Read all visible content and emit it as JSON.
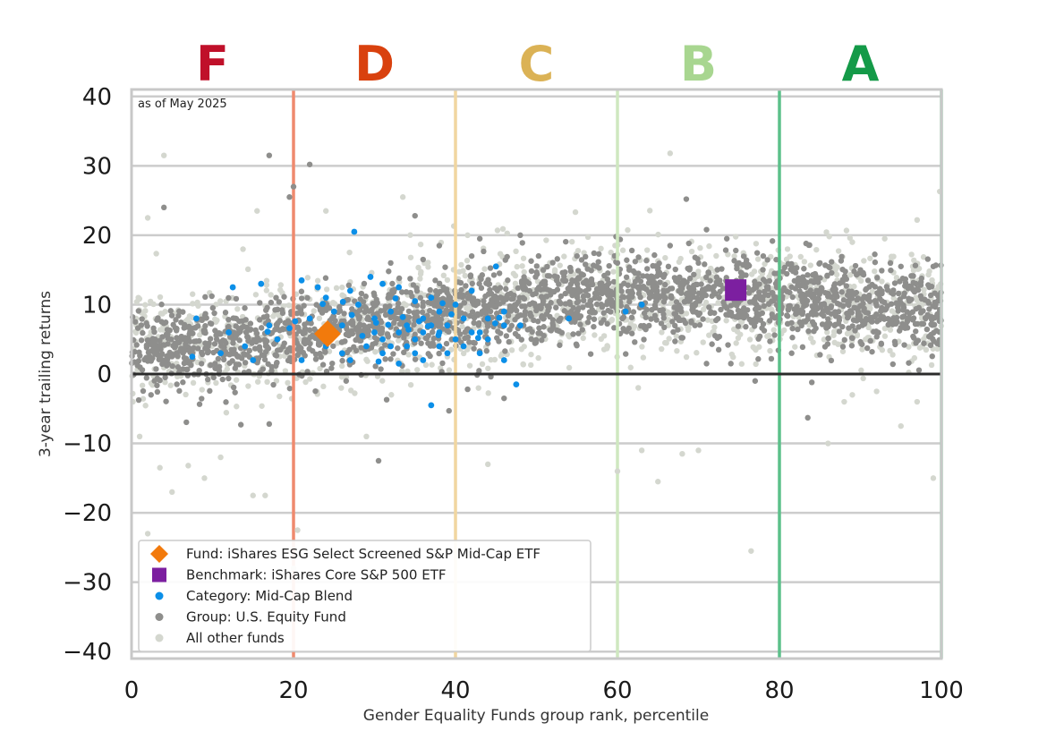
{
  "chart_data": {
    "type": "scatter",
    "note": "as of May 2025",
    "xlabel": "Gender Equality Funds group rank, percentile",
    "ylabel": "3-year trailing returns",
    "xlim": [
      0,
      100
    ],
    "ylim": [
      -41,
      41
    ],
    "xticks": [
      0,
      20,
      40,
      60,
      80,
      100
    ],
    "xtick_labels": [
      "0",
      "20",
      "40",
      "60",
      "80",
      "100"
    ],
    "yticks": [
      40,
      30,
      20,
      10,
      0,
      -10,
      -20,
      -30,
      -40
    ],
    "ytick_labels": [
      "40",
      "30",
      "20",
      "10",
      "0",
      "−10",
      "−20",
      "−30",
      "−40"
    ],
    "grid": "horizontal",
    "zero_line": 0,
    "grade_bands": [
      {
        "grade": "F",
        "x_center": 10,
        "color": "#c0102a"
      },
      {
        "grade": "D",
        "x_center": 30,
        "color": "#d9410e"
      },
      {
        "grade": "C",
        "x_center": 50,
        "color": "#dbb255"
      },
      {
        "grade": "B",
        "x_center": 70,
        "color": "#a8d690"
      },
      {
        "grade": "A",
        "x_center": 90,
        "color": "#149a48"
      }
    ],
    "boundaries": [
      {
        "x": 20,
        "color": "#ef8a6e"
      },
      {
        "x": 40,
        "color": "#f1d6a0"
      },
      {
        "x": 60,
        "color": "#cfe8c0"
      },
      {
        "x": 80,
        "color": "#5cc08a"
      },
      {
        "x": 100,
        "color": "#8fd0aa"
      }
    ],
    "legend_position": "bottom-left",
    "series": [
      {
        "name": "Fund: iShares ESG Select Screened S&P Mid-Cap ETF",
        "marker": "diamond",
        "color": "#f27a0c",
        "points": [
          [
            24.2,
            5.8
          ]
        ]
      },
      {
        "name": "Benchmark: iShares Core S&P 500 ETF",
        "marker": "square",
        "color": "#7c1fa0",
        "points": [
          [
            74.6,
            12.1
          ]
        ]
      },
      {
        "name": "Category: Mid-Cap Blend",
        "marker": "dot",
        "color": "#0b8fe8",
        "points": [
          [
            27.5,
            20.5
          ],
          [
            29.5,
            14
          ],
          [
            31,
            13
          ],
          [
            12.5,
            12.5
          ],
          [
            16,
            13
          ],
          [
            21,
            13.5
          ],
          [
            23,
            12.5
          ],
          [
            27,
            12
          ],
          [
            33,
            12.5
          ],
          [
            45,
            15.5
          ],
          [
            42,
            12
          ],
          [
            37,
            11
          ],
          [
            24,
            11
          ],
          [
            28,
            10
          ],
          [
            35,
            10.5
          ],
          [
            40,
            10
          ],
          [
            61,
            9
          ],
          [
            63,
            10
          ],
          [
            54,
            8
          ],
          [
            46,
            9
          ],
          [
            8,
            8
          ],
          [
            12,
            6
          ],
          [
            17,
            7
          ],
          [
            22,
            8
          ],
          [
            25,
            9
          ],
          [
            26,
            7
          ],
          [
            30,
            8
          ],
          [
            32,
            9
          ],
          [
            34,
            7
          ],
          [
            36,
            8
          ],
          [
            38,
            9
          ],
          [
            39,
            7
          ],
          [
            41,
            8
          ],
          [
            43,
            6
          ],
          [
            44,
            8
          ],
          [
            46,
            7
          ],
          [
            48,
            7
          ],
          [
            30,
            6
          ],
          [
            31,
            5
          ],
          [
            33,
            6
          ],
          [
            35,
            5
          ],
          [
            36,
            6
          ],
          [
            37,
            7
          ],
          [
            38,
            6
          ],
          [
            40,
            5
          ],
          [
            42,
            6
          ],
          [
            29,
            4
          ],
          [
            31,
            3
          ],
          [
            32,
            4
          ],
          [
            34,
            4
          ],
          [
            35,
            3
          ],
          [
            38,
            4
          ],
          [
            39,
            3
          ],
          [
            41,
            4
          ],
          [
            43,
            3
          ],
          [
            44,
            5
          ],
          [
            26,
            3
          ],
          [
            27,
            2
          ],
          [
            21,
            2
          ],
          [
            24,
            4
          ],
          [
            18,
            5
          ],
          [
            14,
            4
          ],
          [
            7.5,
            2.5
          ],
          [
            11,
            3
          ],
          [
            15,
            2
          ],
          [
            36,
            2
          ],
          [
            46,
            2
          ],
          [
            47.5,
            -1.5
          ],
          [
            37,
            -4.5
          ],
          [
            33,
            1.5
          ],
          [
            30.5,
            1.8
          ],
          [
            28.5,
            5.5
          ],
          [
            27.2,
            8.5
          ],
          [
            33.5,
            8.2
          ],
          [
            35.5,
            7.6
          ],
          [
            39.5,
            8.6
          ],
          [
            34.2,
            6.4
          ],
          [
            36.6,
            6.9
          ],
          [
            42.8,
            5.2
          ],
          [
            31.7,
            7.1
          ],
          [
            30.2,
            7.4
          ],
          [
            45.4,
            8.1
          ],
          [
            44.9,
            7.3
          ],
          [
            37.9,
            5.6
          ],
          [
            38.4,
            10.2
          ],
          [
            32.6,
            10.9
          ],
          [
            26.1,
            10.4
          ],
          [
            23.6,
            10.1
          ],
          [
            20.2,
            7.6
          ],
          [
            19.5,
            6.6
          ],
          [
            16.8,
            6.1
          ]
        ]
      },
      {
        "name": "Group: U.S. Equity Fund",
        "marker": "dot",
        "color": "#8e8e8c",
        "points": [
          [
            17,
            31.5
          ],
          [
            22,
            30.2
          ],
          [
            20,
            27
          ],
          [
            19.5,
            25.5
          ],
          [
            4,
            24
          ],
          [
            35,
            22.8
          ],
          [
            68.5,
            25.2
          ],
          [
            71,
            20.8
          ],
          [
            73.5,
            19.5
          ],
          [
            66.5,
            18.5
          ],
          [
            48,
            20
          ],
          [
            43,
            19.5
          ],
          [
            38,
            18.5
          ],
          [
            42,
            17
          ],
          [
            36,
            16.5
          ],
          [
            32,
            16
          ],
          [
            55,
            17
          ],
          [
            60,
            16
          ],
          [
            65,
            15
          ],
          [
            70,
            16
          ],
          [
            75,
            16
          ],
          [
            78,
            17
          ],
          [
            85,
            16
          ],
          [
            90,
            15
          ],
          [
            95,
            15.5
          ],
          [
            99,
            15.5
          ],
          [
            30.5,
            -12.5
          ],
          [
            83.5,
            -6.3
          ],
          [
            39.2,
            -5.3
          ],
          [
            31.5,
            -3.7
          ],
          [
            46,
            -3.5
          ],
          [
            41.5,
            -2.2
          ],
          [
            26.5,
            -1
          ],
          [
            77,
            -1
          ],
          [
            84,
            -1.2
          ],
          [
            74,
            1.5
          ],
          [
            71,
            1.5
          ],
          [
            79,
            2.2
          ],
          [
            72.5,
            3.5
          ],
          [
            17,
            -7.2
          ],
          [
            13.5,
            -7.3
          ]
        ]
      },
      {
        "name": "All other funds",
        "marker": "dot",
        "color": "#d4d7cf",
        "points": [
          [
            4,
            31.5
          ],
          [
            66.5,
            31.8
          ],
          [
            33.5,
            25.5
          ],
          [
            2,
            22.5
          ],
          [
            15.5,
            23.5
          ],
          [
            24,
            23.5
          ],
          [
            41.5,
            20
          ],
          [
            97,
            22.2
          ],
          [
            99.8,
            26.3
          ],
          [
            81,
            18
          ],
          [
            89,
            19
          ],
          [
            93,
            19.5
          ],
          [
            1,
            -9
          ],
          [
            15,
            -17.5
          ],
          [
            20.5,
            -22.5
          ],
          [
            20,
            -28
          ],
          [
            76.5,
            -25.5
          ],
          [
            86,
            -10
          ],
          [
            95,
            -7.5
          ],
          [
            99,
            -15
          ],
          [
            3.5,
            -13.5
          ],
          [
            7,
            -13.2
          ],
          [
            2,
            -23
          ],
          [
            9,
            -15
          ],
          [
            44,
            -13
          ],
          [
            63,
            -11
          ],
          [
            11,
            -12
          ],
          [
            70,
            -11
          ],
          [
            5,
            -17
          ],
          [
            16.5,
            -17.5
          ],
          [
            29,
            -9
          ],
          [
            60,
            -14
          ],
          [
            68,
            -11.5
          ],
          [
            65,
            -15.5
          ],
          [
            89,
            -3
          ],
          [
            92,
            -2.5
          ],
          [
            97,
            -4
          ],
          [
            88,
            -4
          ]
        ]
      }
    ]
  }
}
